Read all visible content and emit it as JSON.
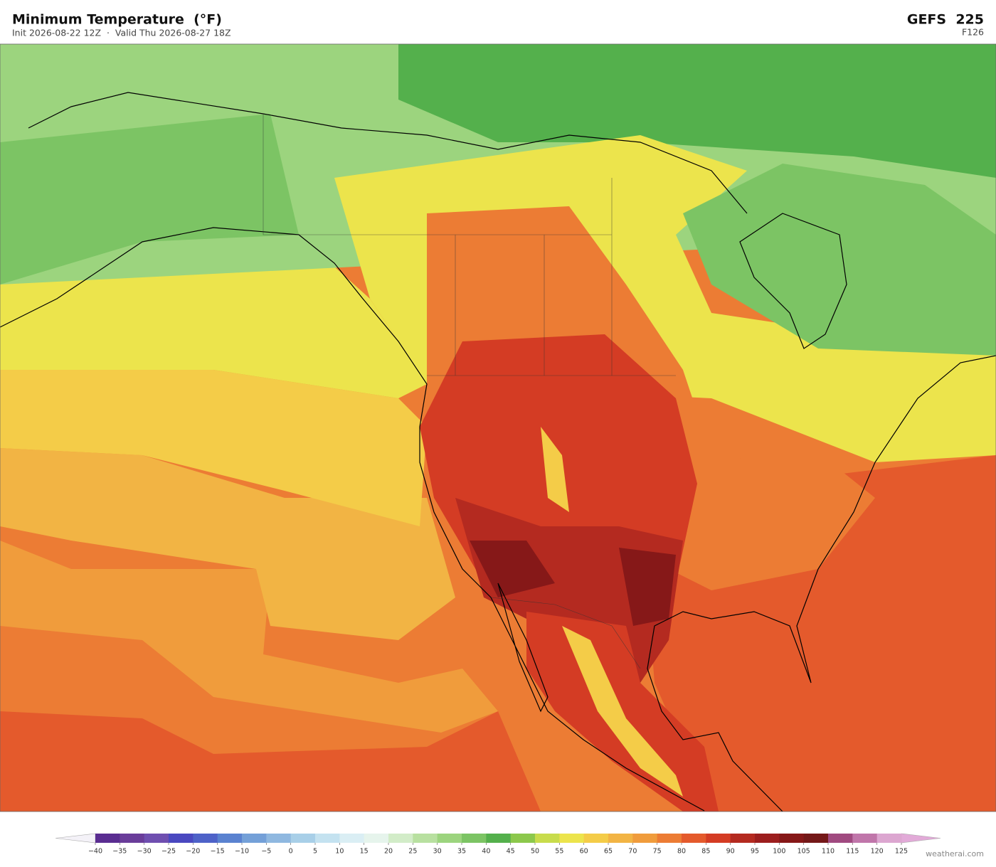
{
  "header": {
    "title": "Minimum Temperature  (°F)",
    "subtitle": "Init 2026-08-22 12Z  ·  Valid Thu 2026-08-27 18Z",
    "model": "GEFS  225",
    "forecast_hour": "F126"
  },
  "colorbar": {
    "ticks": [
      {
        "value": -40,
        "label": "−40"
      },
      {
        "value": -35,
        "label": "−35"
      },
      {
        "value": -30,
        "label": "−30"
      },
      {
        "value": -25,
        "label": "−25"
      },
      {
        "value": -20,
        "label": "−20"
      },
      {
        "value": -15,
        "label": "−15"
      },
      {
        "value": -10,
        "label": "−10"
      },
      {
        "value": -5,
        "label": "−5"
      },
      0,
      5,
      10,
      15,
      20,
      25,
      30,
      35,
      40,
      45,
      50,
      55,
      60,
      65,
      70,
      75,
      80,
      85,
      90,
      95,
      100,
      105,
      110,
      115,
      120,
      125
    ],
    "colors": [
      "#5a2d91",
      "#6a3d9a",
      "#6f4fb0",
      "#4a48c0",
      "#4e62c8",
      "#5a82d0",
      "#74a0d8",
      "#8fb8e0",
      "#a8cfe8",
      "#c4e2f0",
      "#daeef4",
      "#e6f4ec",
      "#d2ecc8",
      "#b8e0a0",
      "#9cd47e",
      "#7cc464",
      "#54b04c",
      "#8cc84c",
      "#c8dc4c",
      "#ece44c",
      "#f4cc48",
      "#f2b444",
      "#f09c3c",
      "#ec7c34",
      "#e45a2c",
      "#d43c24",
      "#b42a20",
      "#9c1e1e",
      "#861818",
      "#741818",
      "#a04a80",
      "#c076aa",
      "#dca6d0"
    ],
    "extend_low_color": "#f4f2f8",
    "extend_high_color": "#e2aad8"
  },
  "watermark": "weatherai.com"
}
